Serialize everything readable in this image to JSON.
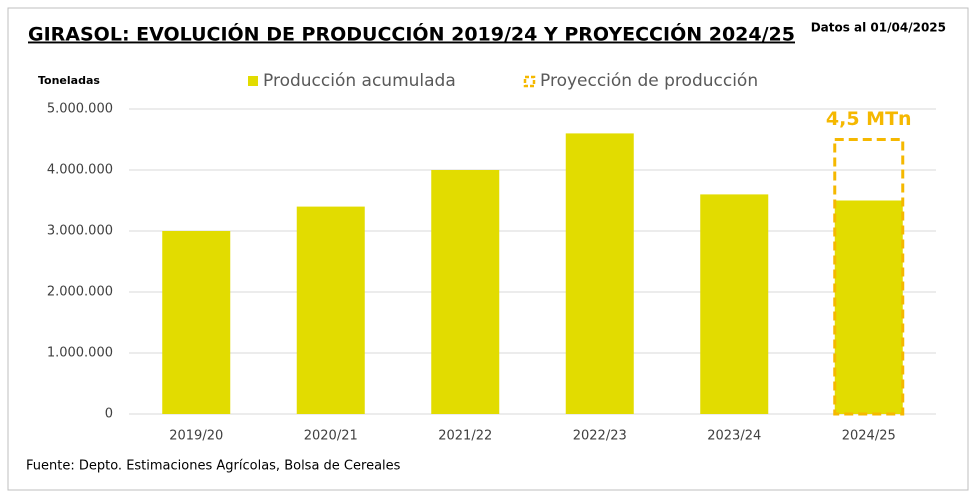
{
  "chart_data": {
    "type": "bar",
    "title": "GIRASOL: EVOLUCIÓN DE PRODUCCIÓN 2019/24 Y PROYECCIÓN 2024/25",
    "subtitle": "Datos al 01/04/2025",
    "y_label": "Toneladas",
    "source": "Fuente: Depto. Estimaciones Agrícolas, Bolsa de Cereales",
    "categories": [
      "2019/20",
      "2020/21",
      "2021/22",
      "2022/23",
      "2023/24",
      "2024/25"
    ],
    "series": [
      {
        "name": "Producción acumulada",
        "color": "#e2dc00",
        "values": [
          3000000,
          3400000,
          4000000,
          4600000,
          3600000,
          3500000
        ]
      },
      {
        "name": "Proyección de producción",
        "color": "#f5b800",
        "values": [
          null,
          null,
          null,
          null,
          null,
          4500000
        ],
        "value_labels": [
          null,
          null,
          null,
          null,
          null,
          "4,5 MTn"
        ]
      }
    ],
    "ylim": [
      0,
      5000000
    ],
    "yticks": [
      0,
      {
        "value": 1000000,
        "label": "1.000.000"
      },
      {
        "value": 2000000,
        "label": "2.000.000"
      },
      {
        "value": 3000000,
        "label": "3.000.000"
      },
      {
        "value": 4000000,
        "label": "4.000.000"
      },
      {
        "value": 5000000,
        "label": "5.000.000"
      }
    ],
    "grid": true
  }
}
